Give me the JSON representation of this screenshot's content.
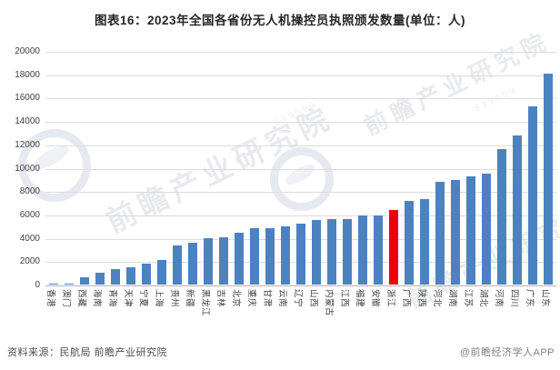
{
  "title": "图表16：2023年全国各省份无人机操控员执照颁发数量(单位：人)",
  "footer": {
    "source": "资料来源：民航局 前瞻产业研究院",
    "credit": "@前瞻经济学人APP"
  },
  "watermark": {
    "text": "前瞻产业研究院",
    "digits": "839599"
  },
  "colors": {
    "bar": "#4d82c0",
    "highlight": "#ee0000",
    "grid": "#dcdcdc",
    "axis": "#b3b3b3",
    "tick_text": "#404040",
    "title_text": "#262626"
  },
  "chart_data": {
    "type": "bar",
    "title": "图表16：2023年全国各省份无人机操控员执照颁发数量(单位：人)",
    "unit": "人",
    "categories": [
      "香港",
      "澳门",
      "西藏",
      "海南",
      "青海",
      "天津",
      "宁夏",
      "上海",
      "贵州",
      "新疆",
      "黑龙江",
      "吉林",
      "北京",
      "重庆",
      "甘肃",
      "云南",
      "辽宁",
      "山西",
      "内蒙古",
      "江西",
      "福建",
      "安徽",
      "浙江",
      "广西",
      "陕西",
      "河北",
      "湖南",
      "江苏",
      "湖北",
      "河南",
      "四川",
      "广东",
      "山东"
    ],
    "values": [
      60,
      100,
      650,
      1050,
      1300,
      1500,
      1820,
      2080,
      3320,
      3580,
      4000,
      4050,
      4400,
      4790,
      4850,
      5000,
      5250,
      5560,
      5580,
      5620,
      5900,
      5950,
      6400,
      7150,
      7280,
      8800,
      8950,
      9260,
      9520,
      11590,
      12750,
      15250,
      18040
    ],
    "highlight_category": "浙江",
    "xlabel": "",
    "ylabel": "",
    "ylim": [
      0,
      20000
    ],
    "ytick_interval": 2000,
    "grid": true,
    "legend": "none"
  }
}
